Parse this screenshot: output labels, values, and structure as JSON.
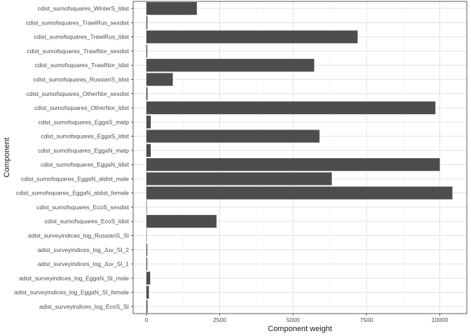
{
  "chart_data": {
    "type": "bar",
    "orientation": "horizontal",
    "title": "",
    "xlabel": "Component weight",
    "ylabel": "Component",
    "xlim": [
      -450,
      10920
    ],
    "xticks": [
      0,
      2500,
      5000,
      7500,
      10000
    ],
    "xtick_labels": [
      "0",
      "2500",
      "5000",
      "7500",
      "10000"
    ],
    "grid": true,
    "bar_color": "#4d4d4d",
    "categories": [
      "cdist_sumofsquares_WinterS_ldist",
      "cdist_sumofsquares_TrawlRus_sexdist",
      "cdist_sumofsquares_TrawlRus_ldist",
      "cdist_sumofsquares_TrawlNor_sexdist",
      "cdist_sumofsquares_TrawlNor_ldist",
      "cdist_sumofsquares_RussianS_ldist",
      "cdist_sumofsquares_OtherNor_sexdist",
      "cdist_sumofsquares_OtherNor_ldist",
      "cdist_sumofsquares_EggaS_matp",
      "cdist_sumofsquares_EggaS_ldist",
      "cdist_sumofsquares_EggaN_matp",
      "cdist_sumofsquares_EggaN_ldist",
      "cdist_sumofsquares_EggaN_aldist_male",
      "cdist_sumofsquares_EggaN_aldist_female",
      "cdist_sumofsquares_EcoS_sexdist",
      "cdist_sumofsquares_EcoS_ldist",
      "adist_surveyindices_log_RussianS_SI",
      "adist_surveyindices_log_Juv_SI_2",
      "adist_surveyindices_log_Juv_SI_1",
      "adist_surveyindices_log_EggaN_SI_male",
      "adist_surveyindices_log_EggaN_SI_female",
      "adist_surveyindices_log_EcoS_SI"
    ],
    "values": [
      1720,
      35,
      7200,
      30,
      5720,
      900,
      40,
      9850,
      150,
      5900,
      150,
      10000,
      6320,
      10430,
      15,
      2390,
      8,
      30,
      30,
      130,
      85,
      40
    ]
  }
}
